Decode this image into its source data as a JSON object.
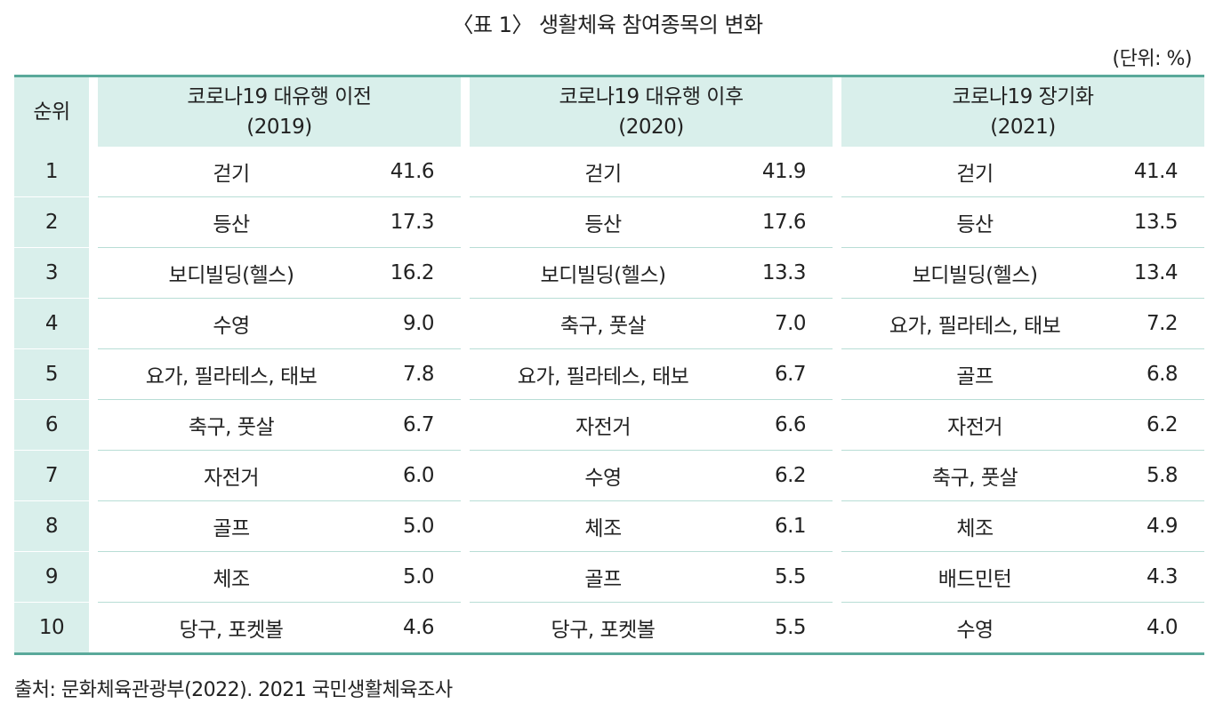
{
  "title": "〈표 1〉 생활체육 참여종목의 변화",
  "unit": "(단위: %)",
  "table": {
    "rank_header": "순위",
    "groups": [
      {
        "line1": "코로나19 대유행 이전",
        "line2": "(2019)"
      },
      {
        "line1": "코로나19 대유행 이후",
        "line2": "(2020)"
      },
      {
        "line1": "코로나19 장기화",
        "line2": "(2021)"
      }
    ],
    "rows": [
      {
        "rank": "1",
        "cells": [
          {
            "name": "걷기",
            "value": "41.6"
          },
          {
            "name": "걷기",
            "value": "41.9"
          },
          {
            "name": "걷기",
            "value": "41.4"
          }
        ]
      },
      {
        "rank": "2",
        "cells": [
          {
            "name": "등산",
            "value": "17.3"
          },
          {
            "name": "등산",
            "value": "17.6"
          },
          {
            "name": "등산",
            "value": "13.5"
          }
        ]
      },
      {
        "rank": "3",
        "cells": [
          {
            "name": "보디빌딩(헬스)",
            "value": "16.2"
          },
          {
            "name": "보디빌딩(헬스)",
            "value": "13.3"
          },
          {
            "name": "보디빌딩(헬스)",
            "value": "13.4"
          }
        ]
      },
      {
        "rank": "4",
        "cells": [
          {
            "name": "수영",
            "value": "9.0"
          },
          {
            "name": "축구, 풋살",
            "value": "7.0"
          },
          {
            "name": "요가, 필라테스, 태보",
            "value": "7.2"
          }
        ]
      },
      {
        "rank": "5",
        "cells": [
          {
            "name": "요가, 필라테스, 태보",
            "value": "7.8"
          },
          {
            "name": "요가, 필라테스, 태보",
            "value": "6.7"
          },
          {
            "name": "골프",
            "value": "6.8"
          }
        ]
      },
      {
        "rank": "6",
        "cells": [
          {
            "name": "축구, 풋살",
            "value": "6.7"
          },
          {
            "name": "자전거",
            "value": "6.6"
          },
          {
            "name": "자전거",
            "value": "6.2"
          }
        ]
      },
      {
        "rank": "7",
        "cells": [
          {
            "name": "자전거",
            "value": "6.0"
          },
          {
            "name": "수영",
            "value": "6.2"
          },
          {
            "name": "축구, 풋살",
            "value": "5.8"
          }
        ]
      },
      {
        "rank": "8",
        "cells": [
          {
            "name": "골프",
            "value": "5.0"
          },
          {
            "name": "체조",
            "value": "6.1"
          },
          {
            "name": "체조",
            "value": "4.9"
          }
        ]
      },
      {
        "rank": "9",
        "cells": [
          {
            "name": "체조",
            "value": "5.0"
          },
          {
            "name": "골프",
            "value": "5.5"
          },
          {
            "name": "배드민턴",
            "value": "4.3"
          }
        ]
      },
      {
        "rank": "10",
        "cells": [
          {
            "name": "당구, 포켓볼",
            "value": "4.6"
          },
          {
            "name": "당구, 포켓볼",
            "value": "5.5"
          },
          {
            "name": "수영",
            "value": "4.0"
          }
        ]
      }
    ]
  },
  "source": "출처: 문화체육관광부(2022). 2021 국민생활체육조사",
  "colors": {
    "header_bg": "#d9efeb",
    "rule": "#5aa99a",
    "row_line": "#b8ddd5"
  }
}
